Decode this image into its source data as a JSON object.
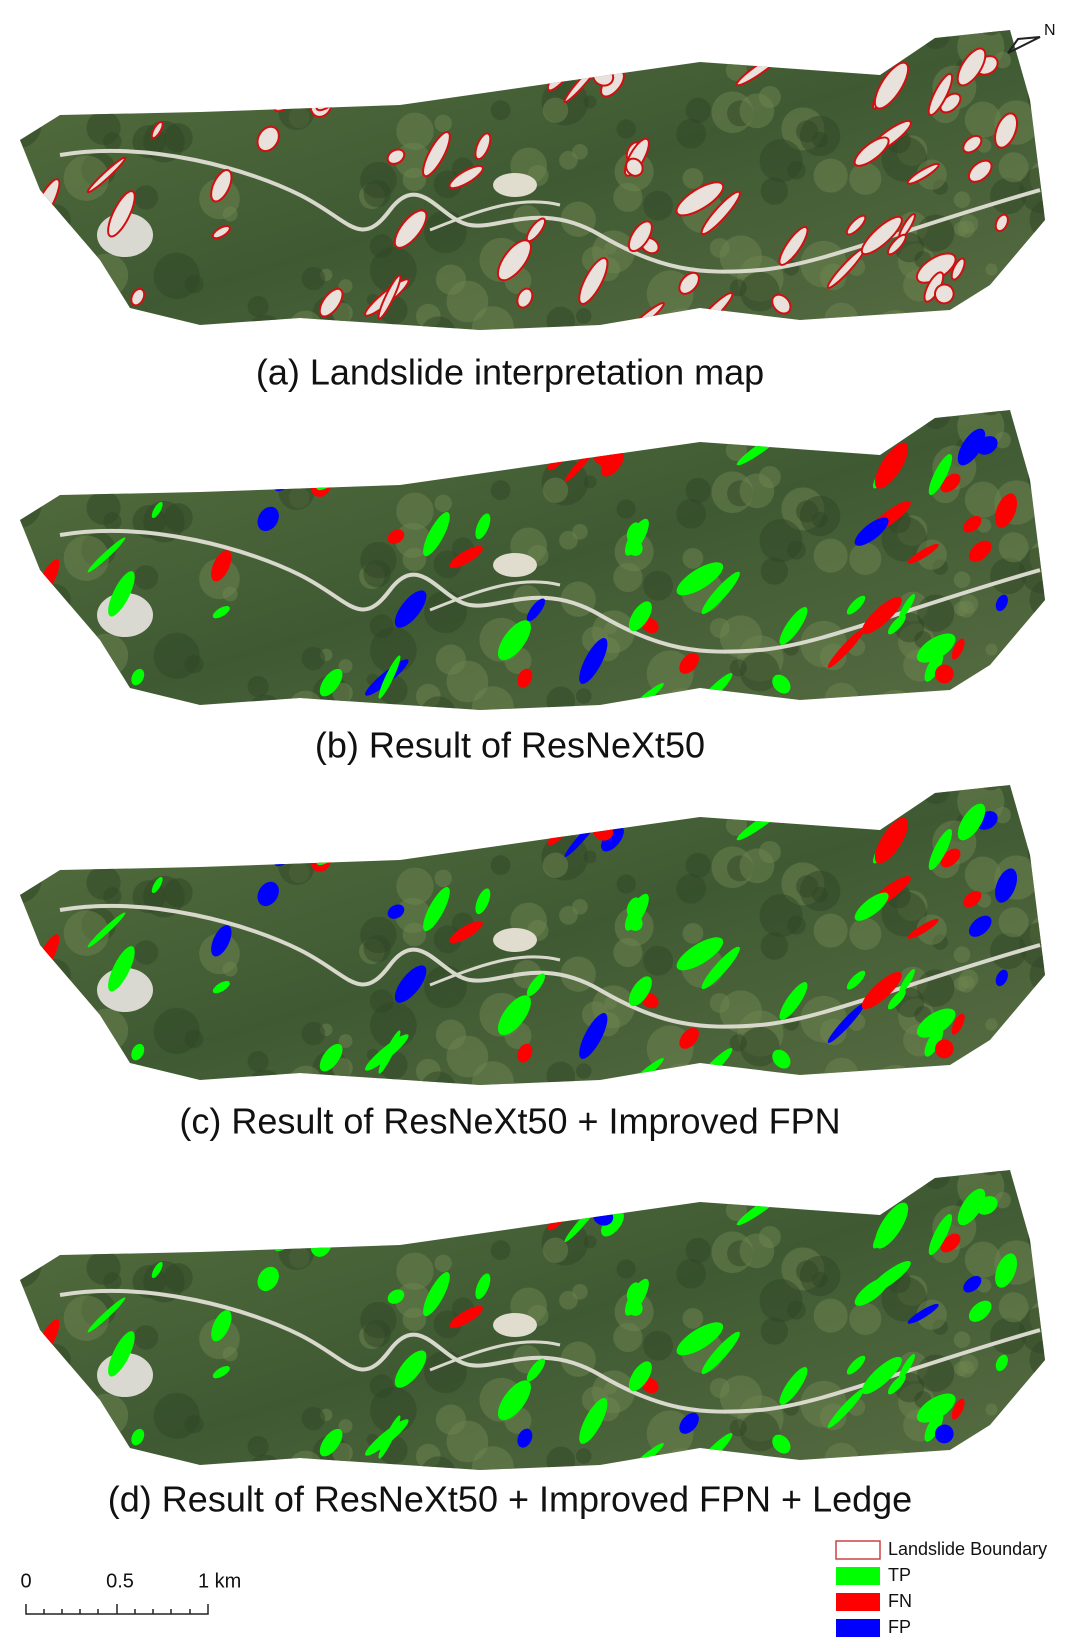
{
  "panels": [
    {
      "caption": "(a) Landslide interpretation map"
    },
    {
      "caption": "(b) Result of ResNeXt50"
    },
    {
      "caption": "(c) Result of ResNeXt50 + Improved FPN"
    },
    {
      "caption": "(d) Result of ResNeXt50 + Improved FPN + Ledge"
    }
  ],
  "north_arrow": "N",
  "scale_bar": {
    "labels": [
      "0",
      "0.5",
      "1 km"
    ]
  },
  "legend": [
    "Landslide Boundary",
    "TP",
    "FN",
    "FP"
  ]
}
